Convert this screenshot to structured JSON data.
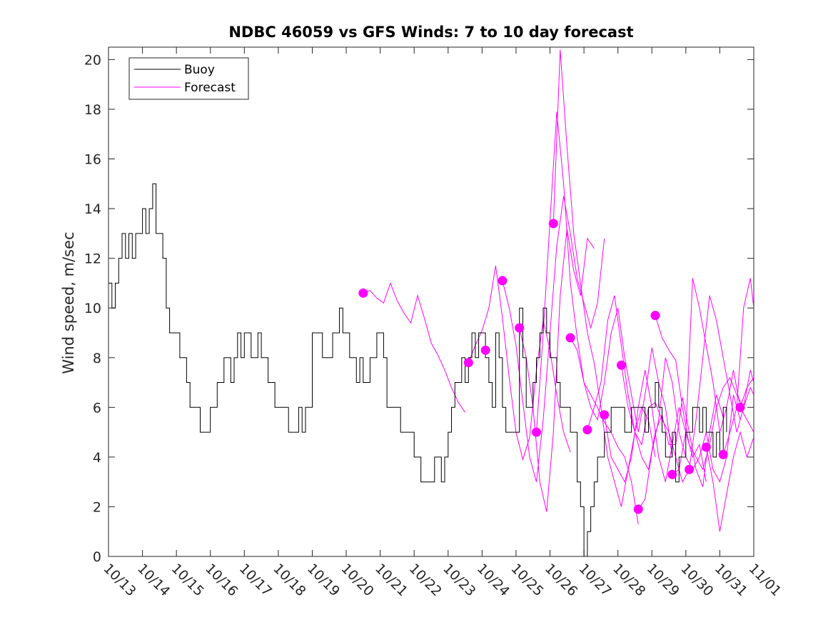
{
  "chart_data": {
    "type": "line",
    "title": "NDBC 46059 vs GFS Winds: 7 to 10 day forecast",
    "xlabel": "",
    "ylabel": "Wind speed, m/sec",
    "x_tick_labels": [
      "10/13",
      "10/14",
      "10/15",
      "10/16",
      "10/17",
      "10/18",
      "10/19",
      "10/20",
      "10/21",
      "10/22",
      "10/23",
      "10/24",
      "10/25",
      "10/26",
      "10/27",
      "10/28",
      "10/29",
      "10/30",
      "10/31",
      "11/01"
    ],
    "y_ticks": [
      0,
      2,
      4,
      6,
      8,
      10,
      12,
      14,
      16,
      18,
      20
    ],
    "xlim": [
      0,
      19
    ],
    "ylim": [
      0,
      20.5
    ],
    "legend": {
      "placement": "top-left",
      "entries": [
        "Buoy",
        "Forecast"
      ]
    },
    "colors": {
      "buoy": "#000000",
      "forecast": "#ff00ff",
      "axis": "#262626"
    },
    "series": [
      {
        "name": "Buoy",
        "x": [
          0.0,
          0.1,
          0.2,
          0.3,
          0.4,
          0.5,
          0.6,
          0.7,
          0.8,
          0.9,
          1.0,
          1.1,
          1.2,
          1.3,
          1.4,
          1.5,
          1.6,
          1.7,
          1.8,
          1.9,
          2.0,
          2.1,
          2.2,
          2.3,
          2.4,
          2.5,
          2.6,
          2.7,
          2.8,
          2.9,
          3.0,
          3.1,
          3.2,
          3.3,
          3.4,
          3.5,
          3.6,
          3.7,
          3.8,
          3.9,
          4.0,
          4.1,
          4.2,
          4.3,
          4.4,
          4.5,
          4.6,
          4.7,
          4.8,
          4.9,
          5.0,
          5.1,
          5.2,
          5.3,
          5.4,
          5.5,
          5.6,
          5.7,
          5.8,
          5.9,
          6.0,
          6.1,
          6.2,
          6.3,
          6.4,
          6.5,
          6.6,
          6.7,
          6.8,
          6.9,
          7.0,
          7.1,
          7.2,
          7.3,
          7.4,
          7.5,
          7.6,
          7.7,
          7.8,
          7.9,
          8.0,
          8.1,
          8.2,
          8.3,
          8.4,
          8.5,
          8.6,
          8.7,
          8.8,
          8.9,
          9.0,
          9.1,
          9.2,
          9.3,
          9.4,
          9.5,
          9.6,
          9.7,
          9.8,
          9.9,
          10.0,
          10.1,
          10.2,
          10.3,
          10.4,
          10.5,
          10.6,
          10.7,
          10.8,
          10.9,
          11.0,
          11.1,
          11.2,
          11.3,
          11.4,
          11.5,
          11.6,
          11.7,
          11.8,
          11.9,
          12.0,
          12.1,
          12.2,
          12.3,
          12.4,
          12.5,
          12.6,
          12.7,
          12.8,
          12.9,
          13.0,
          13.1,
          13.2,
          13.3,
          13.4,
          13.5,
          13.6,
          13.7,
          13.8,
          13.9,
          14.0,
          14.1,
          14.2,
          14.3,
          14.4,
          14.5,
          14.6,
          14.7,
          14.8,
          14.9,
          15.0,
          15.1,
          15.2,
          15.3,
          15.4,
          15.5,
          15.6,
          15.7,
          15.8,
          15.9,
          16.0,
          16.1,
          16.2,
          16.3,
          16.4,
          16.5,
          16.6,
          16.7,
          16.8,
          16.9,
          17.0,
          17.1,
          17.2,
          17.3,
          17.4,
          17.5,
          17.6,
          17.7,
          17.8,
          17.9,
          18.0,
          18.1,
          18.2
        ],
        "y": [
          11,
          10,
          11,
          12,
          13,
          12,
          13,
          12,
          13,
          13,
          14,
          13,
          14,
          15,
          13,
          13,
          12,
          10,
          9,
          9,
          9,
          8,
          8,
          7,
          6,
          6,
          6,
          5,
          5,
          5,
          6,
          6,
          7,
          7,
          8,
          8,
          7,
          8,
          9,
          8,
          9,
          9,
          8,
          8,
          9,
          8,
          8,
          7,
          7,
          6,
          6,
          6,
          6,
          5,
          5,
          5,
          6,
          5,
          6,
          6,
          9,
          9,
          9,
          8,
          8,
          8,
          9,
          9,
          10,
          9,
          9,
          8,
          8,
          7,
          8,
          7,
          7,
          8,
          8,
          9,
          9,
          8,
          6,
          6,
          6,
          6,
          5,
          5,
          5,
          5,
          4,
          4,
          3,
          3,
          3,
          3,
          4,
          4,
          3,
          4,
          5,
          6,
          7,
          7,
          8,
          7,
          8,
          9,
          8,
          9,
          9,
          8,
          7,
          6,
          9,
          8,
          6,
          5,
          5,
          5,
          5,
          10,
          8,
          6,
          6,
          7,
          8,
          9,
          10,
          9,
          8,
          8,
          7,
          6,
          6,
          6,
          5,
          5,
          3,
          2,
          0,
          1,
          2,
          3,
          4,
          4,
          5,
          5,
          6,
          6,
          6,
          6,
          5,
          5,
          6,
          6,
          6,
          6,
          5,
          6,
          6,
          7,
          6,
          5,
          4,
          4,
          5,
          3,
          4,
          4,
          5,
          5,
          6,
          6,
          5,
          6,
          5,
          5,
          4,
          5,
          4,
          6,
          5
        ]
      },
      {
        "name": "Forecast",
        "lines": [
          {
            "x": [
              7.5,
              7.7,
              7.9,
              8.1,
              8.3,
              8.5,
              8.7,
              8.9,
              9.1,
              9.3,
              9.5,
              9.7,
              9.9,
              10.1,
              10.3,
              10.5
            ],
            "y": [
              10.6,
              10.7,
              10.4,
              10.2,
              11.0,
              10.3,
              9.8,
              9.4,
              10.5,
              9.6,
              8.6,
              8.1,
              7.5,
              6.8,
              6.2,
              5.8
            ]
          },
          {
            "x": [
              10.6,
              10.8,
              11.0,
              11.2,
              11.4,
              11.6,
              11.8,
              12.0,
              12.2,
              12.4,
              12.6,
              12.8,
              13.0,
              13.2,
              13.4,
              13.6
            ],
            "y": [
              7.8,
              8.5,
              9.1,
              10.0,
              11.7,
              9.6,
              7.2,
              5.0,
              3.9,
              4.8,
              7.5,
              9.5,
              8.3,
              6.5,
              5.0,
              4.2
            ]
          },
          {
            "x": [
              11.6,
              11.8,
              12.0,
              12.2,
              12.4,
              12.6,
              12.8,
              13.0,
              13.2,
              13.4,
              13.6,
              13.8,
              14.0,
              14.2,
              14.4,
              14.6
            ],
            "y": [
              11.1,
              10.0,
              8.5,
              6.2,
              4.0,
              3.0,
              5.5,
              9.0,
              12.5,
              14.5,
              13.0,
              11.2,
              10.2,
              9.2,
              10.2,
              12.8
            ]
          },
          {
            "x": [
              12.1,
              12.3,
              12.5,
              12.7,
              12.9,
              13.1,
              13.3,
              13.5,
              13.7,
              13.9,
              14.1,
              14.3
            ],
            "y": [
              9.2,
              8.0,
              6.0,
              3.0,
              1.8,
              5.0,
              10.5,
              13.2,
              11.5,
              10.5,
              12.8,
              12.4
            ]
          },
          {
            "x": [
              12.6,
              12.8,
              13.0,
              13.2,
              13.4,
              13.6,
              13.8,
              14.0,
              14.2,
              14.4,
              14.6,
              14.8,
              15.0,
              15.2,
              15.4,
              15.6
            ],
            "y": [
              5.0,
              9.0,
              13.5,
              17.9,
              15.0,
              11.0,
              8.8,
              7.0,
              6.5,
              6.0,
              5.4,
              5.0,
              4.4,
              4.0,
              3.0,
              1.3
            ]
          },
          {
            "x": [
              13.1,
              13.3,
              13.5,
              13.7,
              13.9,
              14.1,
              14.3,
              14.5,
              14.7,
              14.9,
              15.1,
              15.3,
              15.5,
              15.7,
              15.9,
              16.1
            ],
            "y": [
              13.4,
              20.4,
              16.5,
              13.0,
              11.0,
              9.0,
              7.8,
              6.0,
              4.0,
              3.0,
              2.0,
              3.5,
              5.0,
              6.0,
              5.5,
              4.0
            ]
          },
          {
            "x": [
              13.6,
              13.8,
              14.0,
              14.2,
              14.4,
              14.6,
              14.8,
              15.0,
              15.2,
              15.4,
              15.6,
              15.8,
              16.0,
              16.2,
              16.4,
              16.6
            ],
            "y": [
              8.8,
              8.3,
              7.0,
              6.0,
              5.5,
              7.0,
              9.0,
              10.0,
              8.0,
              6.5,
              5.0,
              6.5,
              8.4,
              7.0,
              6.0,
              4.0
            ]
          },
          {
            "x": [
              14.1,
              14.3,
              14.5,
              14.7,
              14.9,
              15.1,
              15.3,
              15.5,
              15.7,
              15.9,
              16.1,
              16.3,
              16.5,
              16.7,
              16.9,
              17.1
            ],
            "y": [
              5.1,
              6.0,
              7.0,
              9.5,
              10.5,
              8.5,
              6.5,
              5.0,
              4.5,
              6.0,
              6.2,
              5.5,
              5.0,
              4.0,
              3.0,
              3.5
            ]
          },
          {
            "x": [
              14.6,
              14.8,
              15.0,
              15.2,
              15.4,
              15.6,
              15.8,
              16.0,
              16.2,
              16.4,
              16.6,
              16.8,
              17.0,
              17.2,
              17.4,
              17.6
            ],
            "y": [
              5.7,
              4.0,
              3.5,
              3.0,
              4.0,
              6.0,
              7.5,
              6.0,
              4.0,
              3.0,
              4.5,
              6.0,
              5.0,
              4.0,
              4.5,
              3.0
            ]
          },
          {
            "x": [
              15.1,
              15.3,
              15.5,
              15.7,
              15.9,
              16.1,
              16.3,
              16.5,
              16.7,
              16.9,
              17.1,
              17.3,
              17.5,
              17.7,
              17.9,
              18.1
            ],
            "y": [
              7.7,
              6.0,
              5.0,
              4.0,
              3.5,
              5.0,
              5.7,
              4.5,
              4.5,
              6.4,
              5.0,
              3.5,
              2.8,
              5.0,
              6.5,
              5.6
            ]
          },
          {
            "x": [
              15.6,
              15.8,
              16.0,
              16.2,
              16.4,
              16.6,
              16.8,
              17.0,
              17.2,
              17.4,
              17.6,
              17.8,
              18.0,
              18.2,
              18.4,
              18.6
            ],
            "y": [
              1.9,
              2.3,
              4.2,
              5.5,
              8.0,
              7.0,
              5.0,
              4.0,
              3.5,
              4.0,
              5.0,
              3.5,
              3.0,
              4.0,
              6.5,
              5.5
            ]
          },
          {
            "x": [
              16.1,
              16.3,
              16.5,
              16.7,
              16.9,
              17.1,
              17.3,
              17.5,
              17.7,
              17.9,
              18.1,
              18.3,
              18.5,
              18.7,
              18.9,
              19.0
            ],
            "y": [
              9.7,
              8.8,
              8.3,
              7.9,
              6.0,
              4.5,
              4.0,
              3.5,
              4.5,
              6.0,
              6.8,
              7.2,
              6.5,
              6.0,
              6.8,
              6.5
            ]
          },
          {
            "x": [
              16.6,
              16.8,
              17.0,
              17.2,
              17.4,
              17.6,
              17.8,
              18.0,
              18.2,
              18.4,
              18.6,
              18.8,
              19.0
            ],
            "y": [
              3.3,
              3.5,
              5.0,
              11.2,
              10.0,
              8.5,
              7.0,
              5.0,
              6.0,
              7.5,
              6.0,
              5.5,
              5.0
            ]
          },
          {
            "x": [
              17.1,
              17.3,
              17.5,
              17.7,
              17.9,
              18.1,
              18.3,
              18.5,
              18.7,
              18.9,
              19.0
            ],
            "y": [
              3.5,
              5.5,
              8.0,
              10.5,
              9.5,
              8.0,
              6.5,
              5.0,
              6.0,
              7.5,
              7.0
            ]
          },
          {
            "x": [
              17.6,
              17.8,
              18.0,
              18.2,
              18.4,
              18.6,
              18.8,
              19.0
            ],
            "y": [
              4.4,
              3.0,
              1.0,
              2.5,
              4.0,
              5.0,
              4.0,
              4.8
            ]
          },
          {
            "x": [
              18.1,
              18.3,
              18.5,
              18.7,
              18.9,
              19.0
            ],
            "y": [
              4.1,
              5.0,
              6.0,
              10.0,
              11.2,
              10.0
            ]
          },
          {
            "x": [
              18.6,
              18.8,
              19.0
            ],
            "y": [
              6.0,
              6.8,
              7.2
            ]
          }
        ],
        "initial_points": {
          "x": [
            7.5,
            10.6,
            11.1,
            11.6,
            12.1,
            12.6,
            13.1,
            13.6,
            14.1,
            14.6,
            15.1,
            15.6,
            16.1,
            16.6,
            17.1,
            17.6,
            18.1,
            18.6
          ],
          "y": [
            10.6,
            7.8,
            8.3,
            11.1,
            9.2,
            5.0,
            13.4,
            8.8,
            5.1,
            5.7,
            7.7,
            1.9,
            9.7,
            3.3,
            3.5,
            4.4,
            4.1,
            6.0
          ]
        }
      }
    ]
  }
}
